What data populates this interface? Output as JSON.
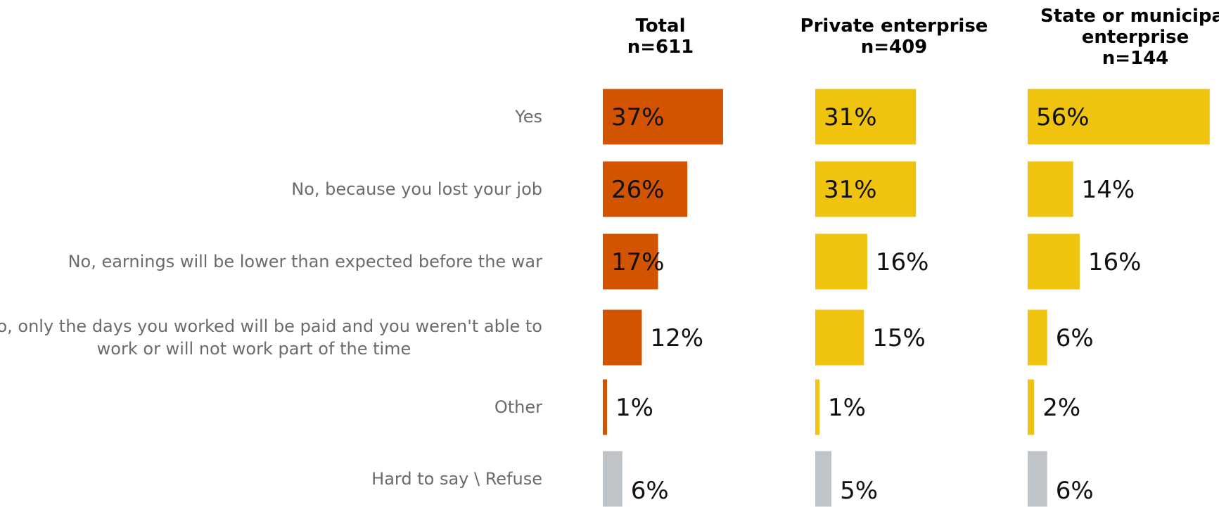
{
  "chart_data": {
    "type": "bar",
    "orientation": "horizontal",
    "categories": [
      "Yes",
      "No, because you lost your job",
      "No, earnings will be lower than expected before the war",
      "No, only the days you worked will be paid and you weren't able to work or will not work part of the time",
      "Other",
      "Hard to say \\ Refuse"
    ],
    "category_lines": [
      [
        "Yes"
      ],
      [
        "No, because you lost your job"
      ],
      [
        "No, earnings will be lower than expected before the war"
      ],
      [
        "No, only the days you worked will be paid and you weren't able to",
        "work or will not work part of the time"
      ],
      [
        "Other"
      ],
      [
        "Hard to say \\ Refuse"
      ]
    ],
    "series": [
      {
        "header": [
          "Total",
          "n=611"
        ],
        "values": [
          37,
          26,
          17,
          12,
          1,
          6
        ],
        "labels": [
          "37%",
          "26%",
          "17%",
          "12%",
          "1%",
          "6%"
        ],
        "color": "#d35400"
      },
      {
        "header": [
          "Private enterprise",
          "n=409"
        ],
        "values": [
          31,
          31,
          16,
          15,
          1,
          5
        ],
        "labels": [
          "31%",
          "31%",
          "16%",
          "15%",
          "1%",
          "5%"
        ],
        "color": "#f0c30f"
      },
      {
        "header": [
          "State or municipal",
          "enterprise",
          "n=144"
        ],
        "values": [
          56,
          14,
          16,
          6,
          2,
          6
        ],
        "labels": [
          "56%",
          "14%",
          "16%",
          "6%",
          "2%",
          "6%"
        ],
        "color": "#f0c30f"
      }
    ],
    "last_category_color": "#bfc4c8",
    "xlim": [
      0,
      56
    ],
    "grid": false,
    "legend": "none",
    "title": "",
    "xlabel": "",
    "ylabel": ""
  }
}
